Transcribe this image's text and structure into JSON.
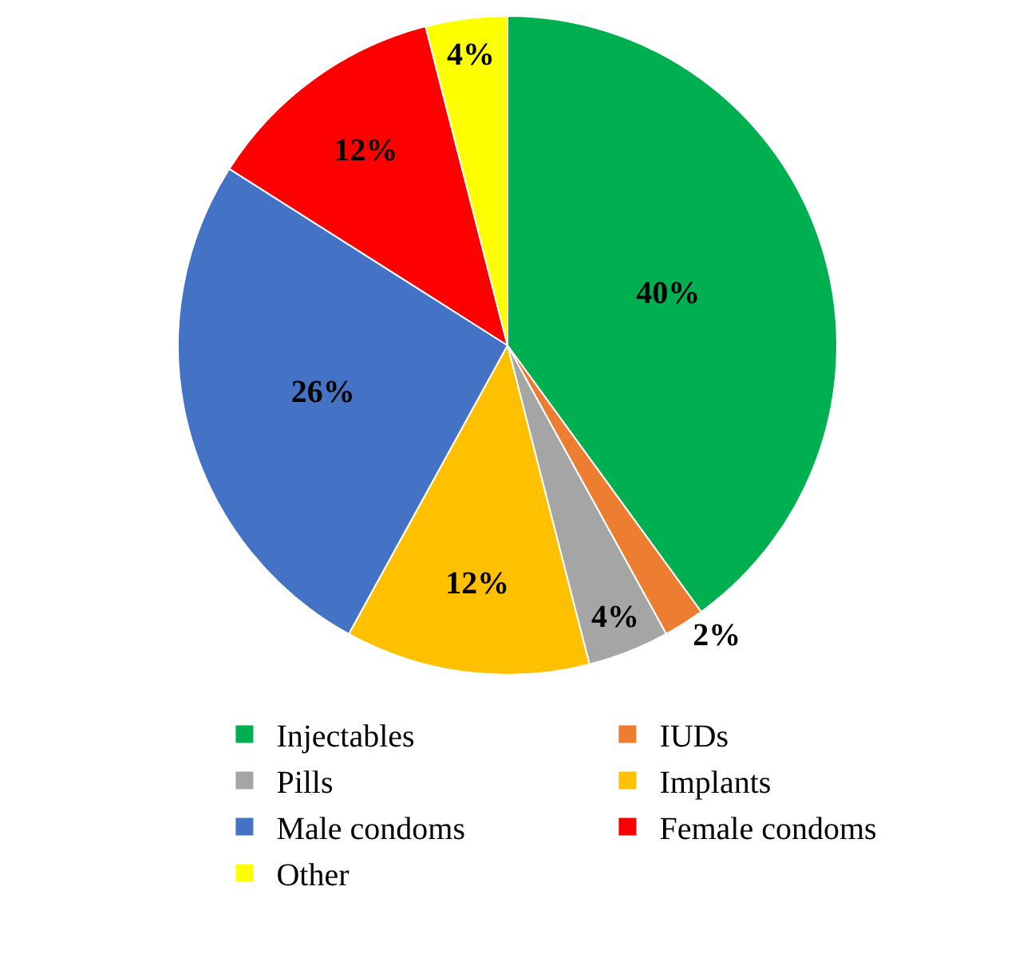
{
  "chart_data": {
    "type": "pie",
    "categories": [
      "Injectables",
      "IUDs",
      "Pills",
      "Implants",
      "Male condoms",
      "Female condoms",
      "Other"
    ],
    "values": [
      40,
      2,
      4,
      12,
      26,
      12,
      4
    ],
    "colors": [
      "#00b050",
      "#ed7d31",
      "#a5a5a5",
      "#ffc000",
      "#4472c4",
      "#ff0000",
      "#ffff00"
    ],
    "value_labels": [
      "40%",
      "2%",
      "4%",
      "12%",
      "26%",
      "12%",
      "4%"
    ],
    "legend": "bottom"
  }
}
